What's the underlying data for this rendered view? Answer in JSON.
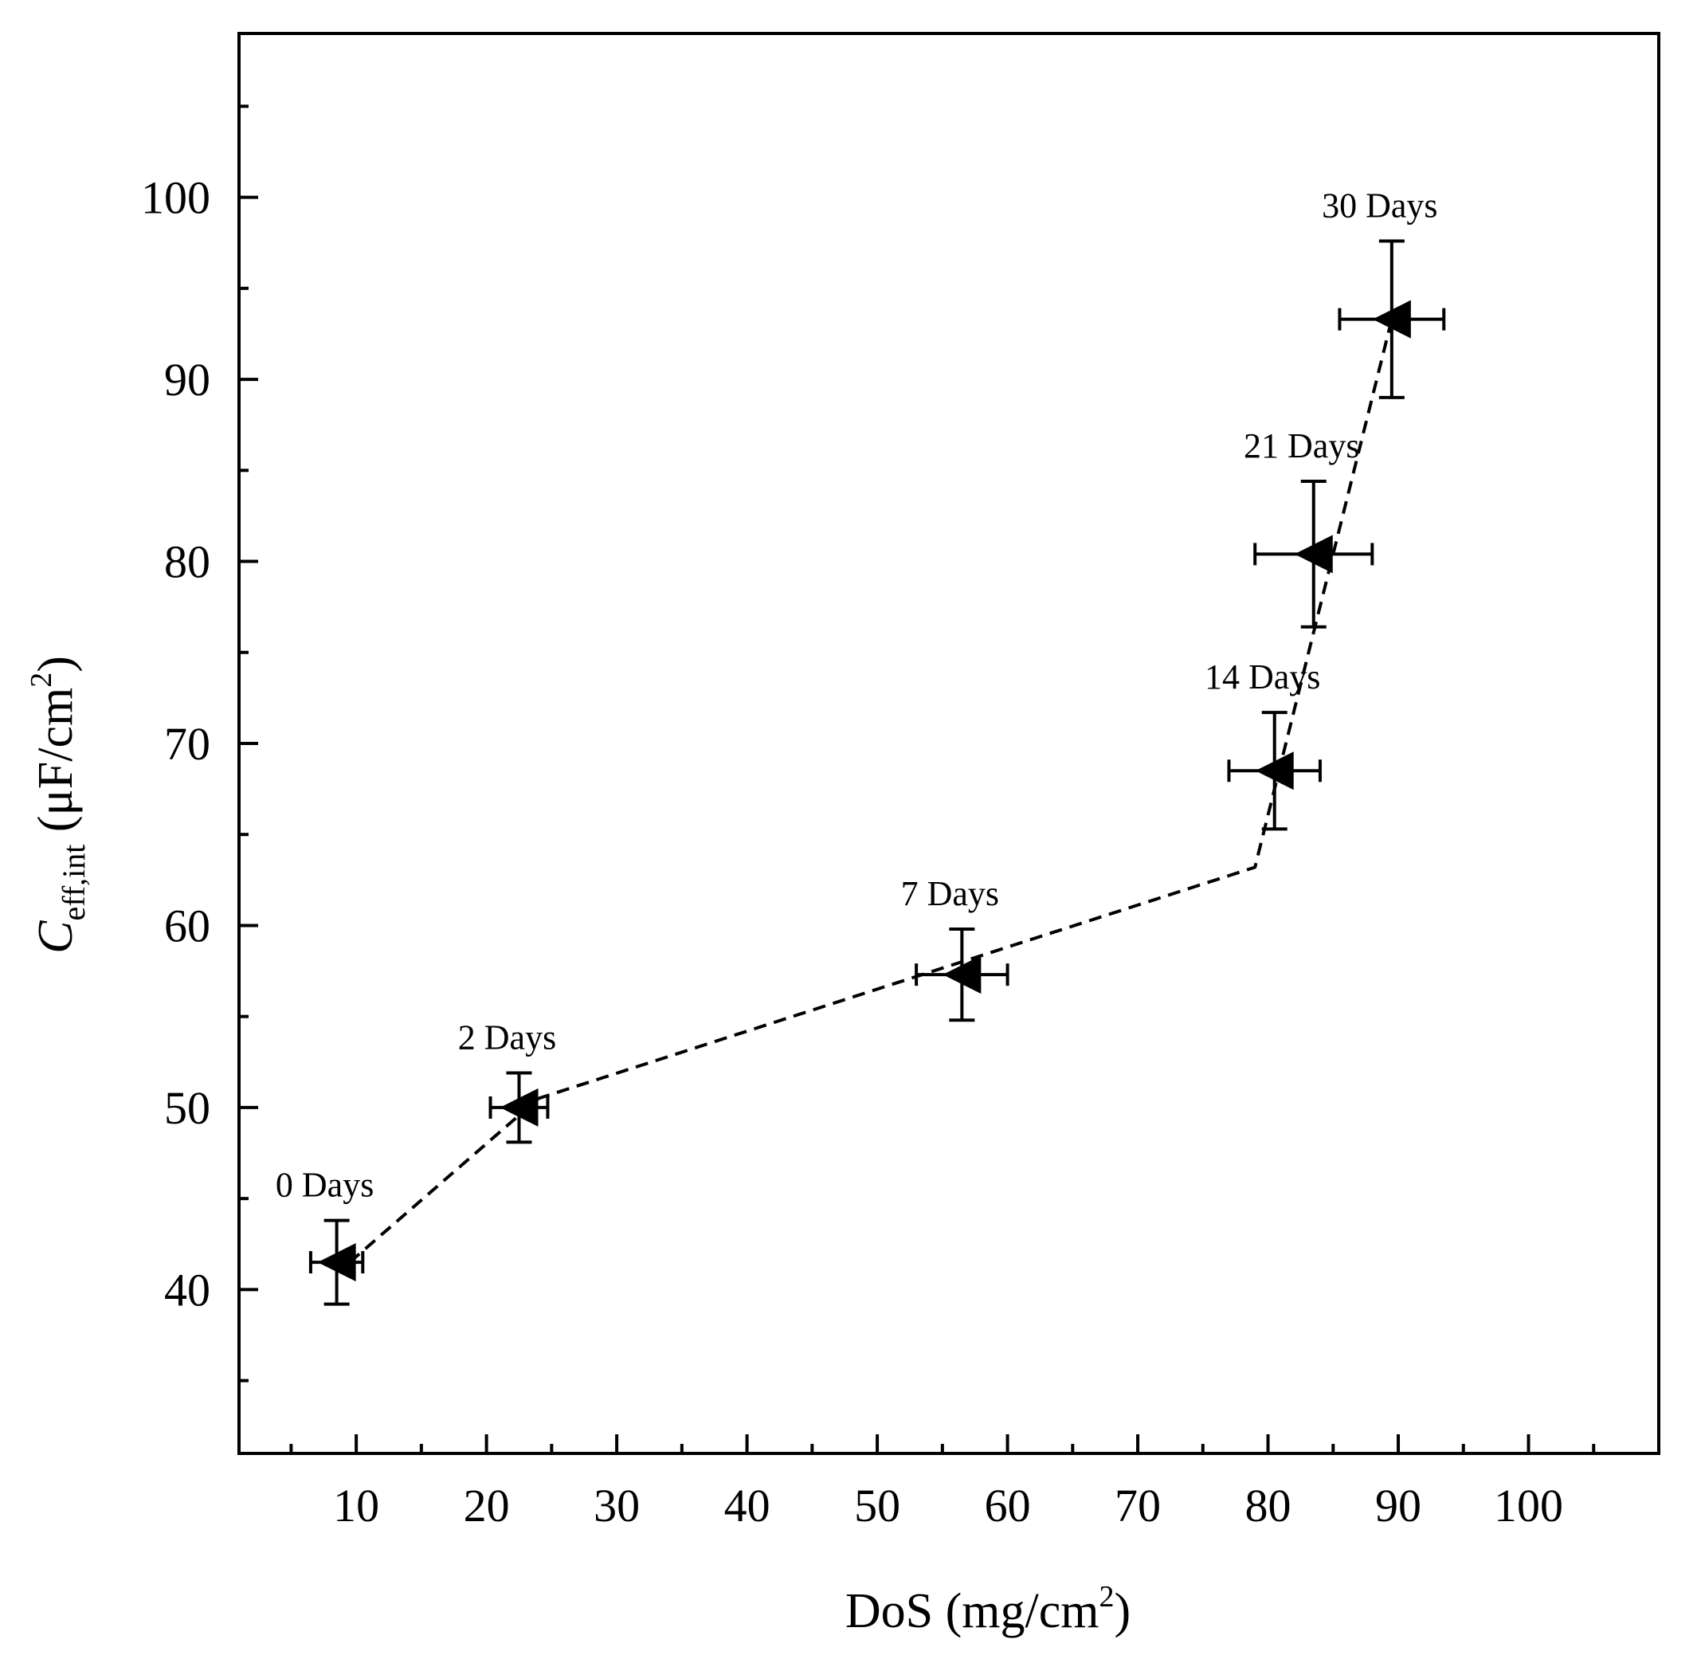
{
  "chart_data": {
    "type": "scatter",
    "xlabel_main": "DoS (mg/cm",
    "xlabel_sup": "2",
    "xlabel_close": ")",
    "ylabel_symbol": "C",
    "ylabel_sub": "eff,int",
    "ylabel_units": " (μF/cm",
    "ylabel_sup": "2",
    "ylabel_close": ")",
    "xlim": [
      1,
      110
    ],
    "ylim": [
      31,
      109
    ],
    "x_ticks": [
      10,
      20,
      30,
      40,
      50,
      60,
      70,
      80,
      90,
      100
    ],
    "x_tick_labels": [
      "10",
      "20",
      "30",
      "40",
      "50",
      "60",
      "70",
      "80",
      "90",
      "100"
    ],
    "y_ticks": [
      40,
      50,
      60,
      70,
      80,
      90,
      100
    ],
    "y_tick_labels": [
      "40",
      "50",
      "60",
      "70",
      "80",
      "90",
      "100"
    ],
    "marker": "left-pointing filled triangle",
    "grid": false,
    "series": [
      {
        "points": [
          {
            "label": "0 Days",
            "x": 8.5,
            "y": 41.5,
            "xerr": 2.0,
            "yerr": 2.3
          },
          {
            "label": "2 Days",
            "x": 22.5,
            "y": 50.0,
            "xerr": 2.2,
            "yerr": 1.9
          },
          {
            "label": "7 Days",
            "x": 56.5,
            "y": 57.3,
            "xerr": 3.5,
            "yerr": 2.5
          },
          {
            "label": "14 Days",
            "x": 80.5,
            "y": 68.5,
            "xerr": 3.5,
            "yerr": 3.2
          },
          {
            "label": "21 Days",
            "x": 83.5,
            "y": 80.4,
            "xerr": 4.5,
            "yerr": 4.0
          },
          {
            "label": "30 Days",
            "x": 89.5,
            "y": 93.3,
            "xerr": 4.0,
            "yerr": 4.3
          }
        ]
      }
    ],
    "fit_line": {
      "style": "dashed",
      "points": [
        [
          9.5,
          41.5
        ],
        [
          24,
          50.5
        ],
        [
          79,
          63.2
        ],
        [
          89.5,
          93.3
        ]
      ]
    }
  }
}
